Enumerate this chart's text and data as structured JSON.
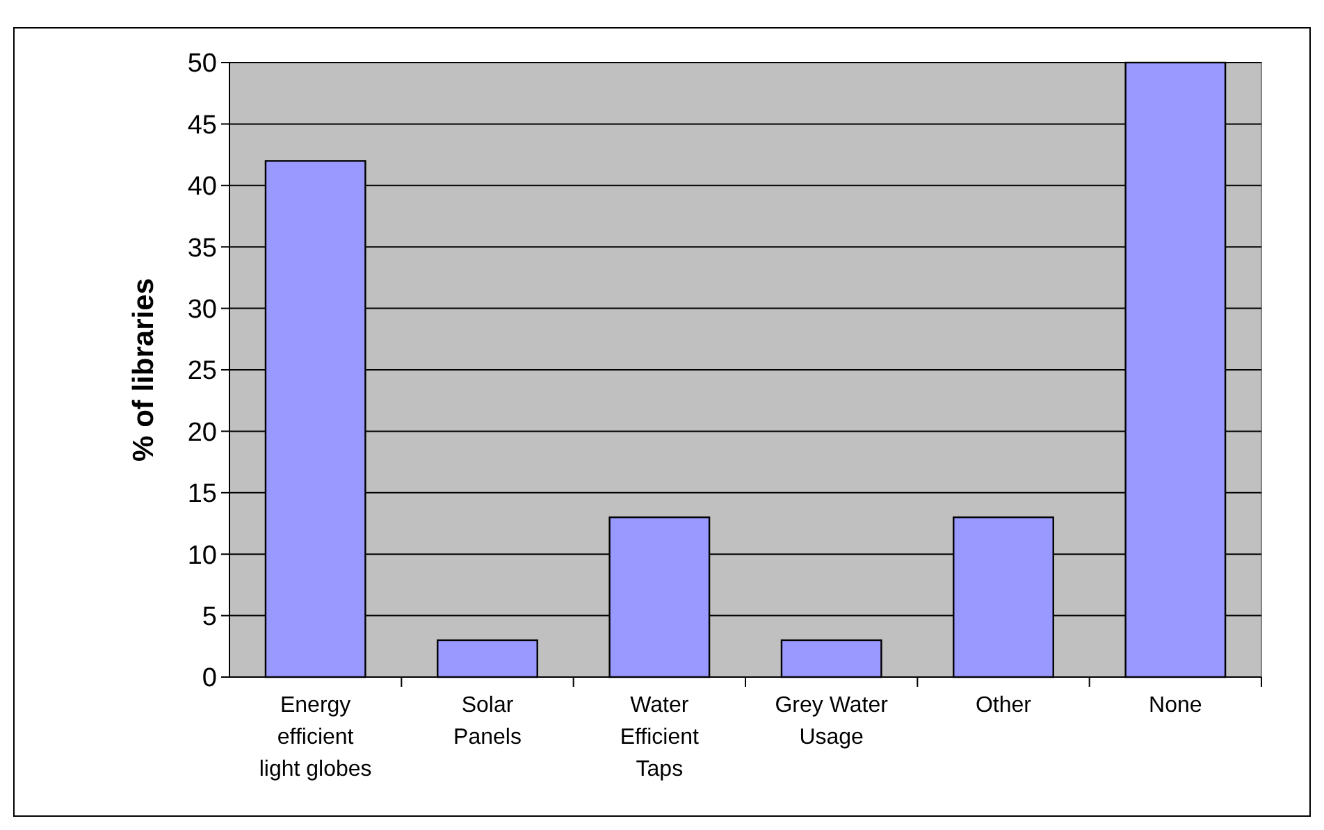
{
  "chart_data": {
    "type": "bar",
    "ylabel": "% of libraries",
    "categories": [
      "Energy\nefficient\nlight globes",
      "Solar\nPanels",
      "Water\nEfficient\nTaps",
      "Grey Water\nUsage",
      "Other",
      "None"
    ],
    "values": [
      42,
      3,
      13,
      3,
      13,
      50
    ],
    "color": "#9999ff",
    "ylim": [
      0,
      50
    ],
    "yticks": [
      0,
      5,
      10,
      15,
      20,
      25,
      30,
      35,
      40,
      45,
      50
    ],
    "grid": "y"
  }
}
